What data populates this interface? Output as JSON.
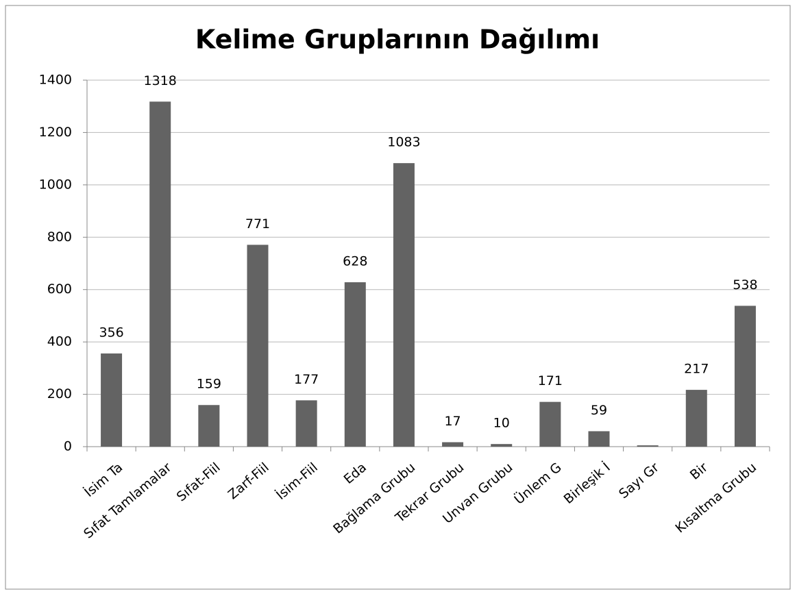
{
  "chart_data": {
    "type": "bar",
    "title": "Kelime Gruplarının Dağılımı",
    "categories": [
      "İsim Ta",
      "Sıfat Tamlamalar",
      "Sıfat-Fiil",
      "Zarf-Fiil",
      "İsim-Fiil",
      "Eda",
      "Bağlama Grubu",
      "Tekrar Grubu",
      "Unvan Grubu",
      "Ünlem G",
      "Birleşik İ",
      "Sayı Gr",
      "Bir",
      "Kısaltma Grubu"
    ],
    "values": [
      356,
      1318,
      159,
      771,
      177,
      628,
      1083,
      17,
      10,
      171,
      59,
      5,
      217,
      538
    ],
    "value_labels": [
      "356",
      "1318",
      "159",
      "771",
      "177",
      "628",
      "1083",
      "17",
      "10",
      "171",
      "59",
      null,
      "217",
      "538"
    ],
    "color": "#636363",
    "ylim": [
      0,
      1400
    ],
    "yticks": [
      0,
      200,
      400,
      600,
      800,
      1000,
      1200,
      1400
    ],
    "grid": true
  }
}
